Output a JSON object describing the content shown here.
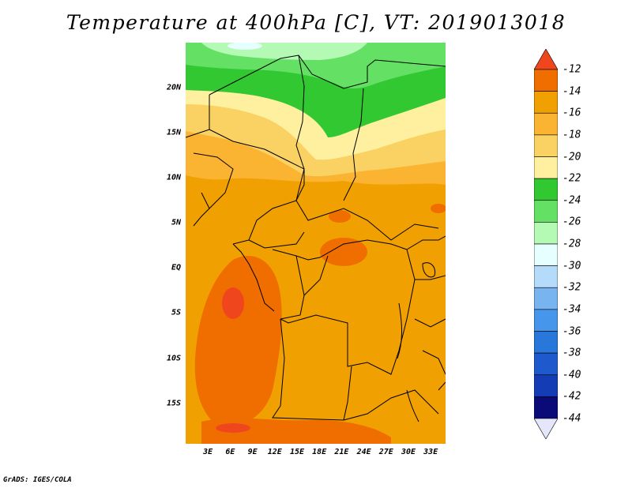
{
  "title": "Temperature at 400hPa [C], VT: 2019013018",
  "credit": "GrADS: IGES/COLA",
  "map": {
    "lat_range": [
      -19.5,
      25
    ],
    "lon_range": [
      0,
      35
    ],
    "lat_ticks": [
      {
        "value": 20,
        "label": "20N"
      },
      {
        "value": 15,
        "label": "15N"
      },
      {
        "value": 10,
        "label": "10N"
      },
      {
        "value": 5,
        "label": "5N"
      },
      {
        "value": 0,
        "label": "EQ"
      },
      {
        "value": -5,
        "label": "5S"
      },
      {
        "value": -10,
        "label": "10S"
      },
      {
        "value": -15,
        "label": "15S"
      }
    ],
    "lon_ticks": [
      {
        "value": 3,
        "label": "3E"
      },
      {
        "value": 6,
        "label": "6E"
      },
      {
        "value": 9,
        "label": "9E"
      },
      {
        "value": 12,
        "label": "12E"
      },
      {
        "value": 15,
        "label": "15E"
      },
      {
        "value": 18,
        "label": "18E"
      },
      {
        "value": 21,
        "label": "21E"
      },
      {
        "value": 24,
        "label": "24E"
      },
      {
        "value": 27,
        "label": "27E"
      },
      {
        "value": 30,
        "label": "30E"
      },
      {
        "value": 33,
        "label": "33E"
      }
    ]
  },
  "colorbar": {
    "labels": [
      "-12",
      "-14",
      "-16",
      "-18",
      "-20",
      "-22",
      "-24",
      "-26",
      "-28",
      "-30",
      "-32",
      "-34",
      "-36",
      "-38",
      "-40",
      "-42",
      "-44"
    ],
    "colors": [
      "#f0461e",
      "#f06e00",
      "#f0a000",
      "#fab432",
      "#fad264",
      "#fff0a0",
      "#32c832",
      "#64e164",
      "#b4fab4",
      "#e6ffff",
      "#b4dcfa",
      "#78b4f0",
      "#4696eb",
      "#2878dc",
      "#1e5acd",
      "#143cb4",
      "#0a0a78",
      "#e6e6fa"
    ]
  }
}
